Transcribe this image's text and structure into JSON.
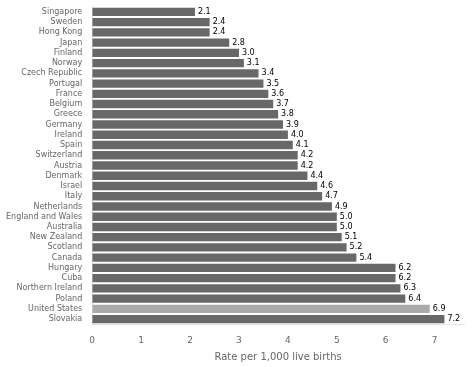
{
  "chart_data": {
    "type": "bar",
    "orientation": "horizontal",
    "xlabel": "Rate per 1,000 live births",
    "categories": [
      "Singapore",
      "Sweden",
      "Hong Kong",
      "Japan",
      "Finland",
      "Norway",
      "Czech Republic",
      "Portugal",
      "France",
      "Belgium",
      "Greece",
      "Germany",
      "Ireland",
      "Spain",
      "Switzerland",
      "Austria",
      "Denmark",
      "Israel",
      "Italy",
      "Netherlands",
      "England and Wales",
      "Australia",
      "New Zealand",
      "Scotland",
      "Canada",
      "Hungary",
      "Cuba",
      "Northern Ireland",
      "Poland",
      "United States",
      "Slovakia"
    ],
    "values": [
      2.1,
      2.4,
      2.4,
      2.8,
      3.0,
      3.1,
      3.4,
      3.5,
      3.6,
      3.7,
      3.8,
      3.9,
      4.0,
      4.1,
      4.2,
      4.2,
      4.4,
      4.6,
      4.7,
      4.9,
      5.0,
      5.0,
      5.1,
      5.2,
      5.4,
      6.2,
      6.2,
      6.3,
      6.4,
      6.9,
      7.2
    ],
    "value_labels": [
      "2.1",
      "2.4",
      "2.4",
      "2.8",
      "3.0",
      "3.1",
      "3.4",
      "3.5",
      "3.6",
      "3.7",
      "3.8",
      "3.9",
      "4.0",
      "4.1",
      "4.2",
      "4.2",
      "4.4",
      "4.6",
      "4.7",
      "4.9",
      "5.0",
      "5.0",
      "5.1",
      "5.2",
      "5.4",
      "6.2",
      "6.2",
      "6.3",
      "6.4",
      "6.9",
      "7.2"
    ],
    "colors": [
      "#686868",
      "#686868",
      "#686868",
      "#686868",
      "#686868",
      "#686868",
      "#686868",
      "#686868",
      "#686868",
      "#686868",
      "#686868",
      "#686868",
      "#686868",
      "#686868",
      "#686868",
      "#686868",
      "#686868",
      "#686868",
      "#686868",
      "#686868",
      "#686868",
      "#686868",
      "#686868",
      "#686868",
      "#686868",
      "#686868",
      "#686868",
      "#686868",
      "#686868",
      "#aaaaaa",
      "#686868"
    ],
    "xlim": [
      0,
      7.6
    ],
    "xticks": [
      0,
      1,
      2,
      3,
      4,
      5,
      6,
      7
    ],
    "data_labels": true,
    "grid": false
  }
}
